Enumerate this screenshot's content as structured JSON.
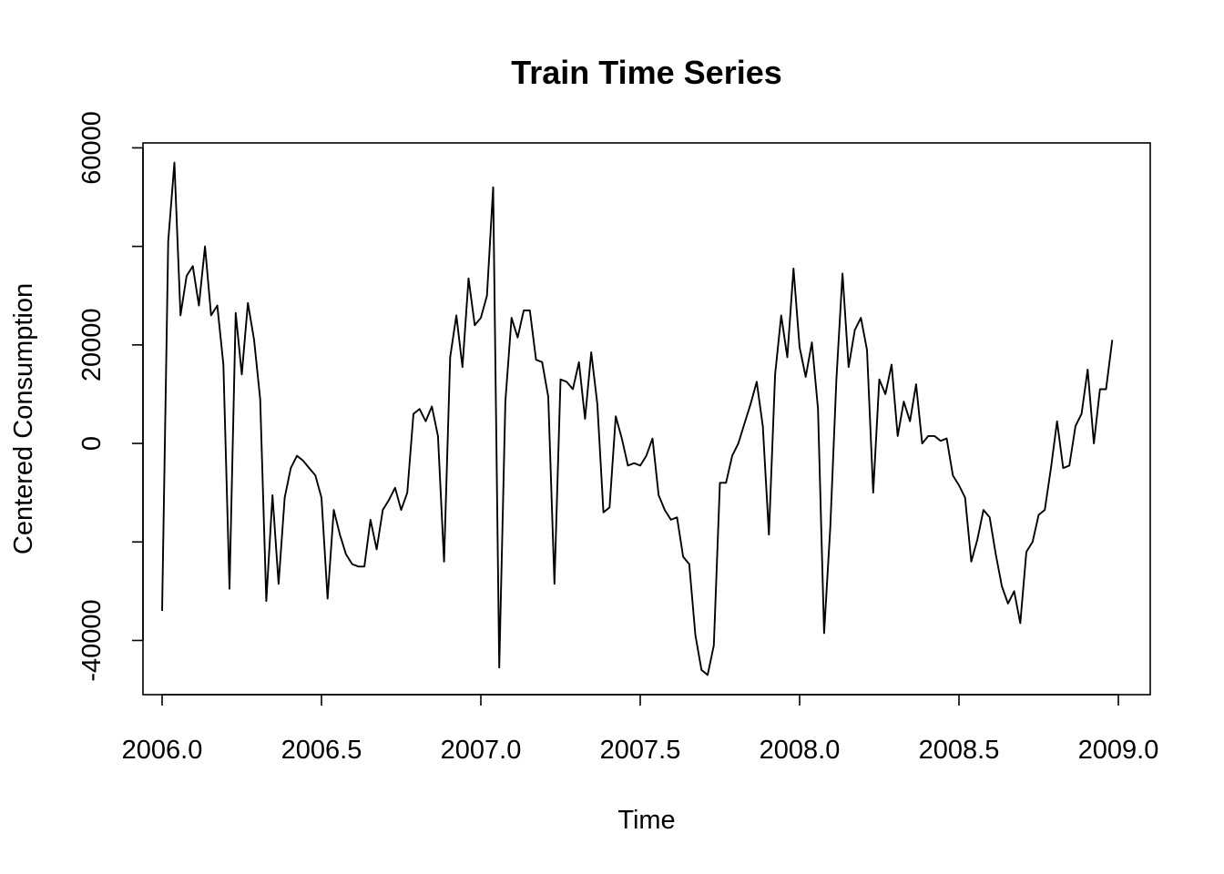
{
  "chart_data": {
    "type": "line",
    "title": "Train Time Series",
    "xlabel": "Time",
    "ylabel": "Centered Consumption",
    "xlim": [
      2005.94,
      2009.1
    ],
    "ylim": [
      -51000,
      61000
    ],
    "x_ticks": [
      2006.0,
      2006.5,
      2007.0,
      2007.5,
      2008.0,
      2008.5,
      2009.0
    ],
    "x_tick_labels": [
      "2006.0",
      "2006.5",
      "2007.0",
      "2007.5",
      "2008.0",
      "2008.5",
      "2009.0"
    ],
    "y_ticks": [
      -40000,
      -20000,
      0,
      20000,
      40000,
      60000
    ],
    "y_tick_labels": [
      "-40000",
      "",
      "0",
      "20000",
      "",
      "60000"
    ],
    "grid": false,
    "line_color": "#000000",
    "series": [
      {
        "x_start": 2006.0,
        "x_step": 0.01923077,
        "values": [
          -34000,
          41000,
          57000,
          26000,
          34000,
          36000,
          28000,
          40000,
          26000,
          28000,
          16000,
          -29500,
          26500,
          14000,
          28500,
          21000,
          9000,
          -32000,
          -10500,
          -28500,
          -11000,
          -5000,
          -2500,
          -3500,
          -5000,
          -6500,
          -11000,
          -31500,
          -13500,
          -18500,
          -22500,
          -24500,
          -25000,
          -25000,
          -15500,
          -21500,
          -13500,
          -11500,
          -9000,
          -13500,
          -10000,
          6000,
          7000,
          4500,
          7500,
          1500,
          -24000,
          17500,
          26000,
          15500,
          33500,
          24000,
          25500,
          30000,
          52000,
          -45500,
          8500,
          25500,
          21500,
          27000,
          27000,
          17000,
          16500,
          9500,
          -28500,
          13000,
          12500,
          11000,
          16500,
          5000,
          18500,
          8000,
          -14000,
          -13000,
          5500,
          1000,
          -4500,
          -4000,
          -4500,
          -2500,
          1000,
          -10500,
          -13500,
          -15500,
          -15000,
          -23000,
          -24500,
          -39000,
          -46000,
          -47000,
          -41000,
          -8000,
          -8000,
          -2500,
          0,
          4000,
          8000,
          12500,
          3500,
          -18500,
          14000,
          26000,
          17500,
          35500,
          19500,
          13500,
          20500,
          7000,
          -38500,
          -17000,
          13000,
          34500,
          15500,
          23000,
          25500,
          19000,
          -10000,
          13000,
          10000,
          16000,
          1500,
          8500,
          4500,
          12000,
          0,
          1500,
          1500,
          500,
          1000,
          -6500,
          -8500,
          -11000,
          -24000,
          -19500,
          -13500,
          -15000,
          -22500,
          -29000,
          -32500,
          -30000,
          -36500,
          -22000,
          -20000,
          -14500,
          -13500,
          -5000,
          4500,
          -5000,
          -4500,
          3500,
          6000,
          15000,
          0,
          11000,
          11000,
          21000
        ]
      }
    ]
  }
}
